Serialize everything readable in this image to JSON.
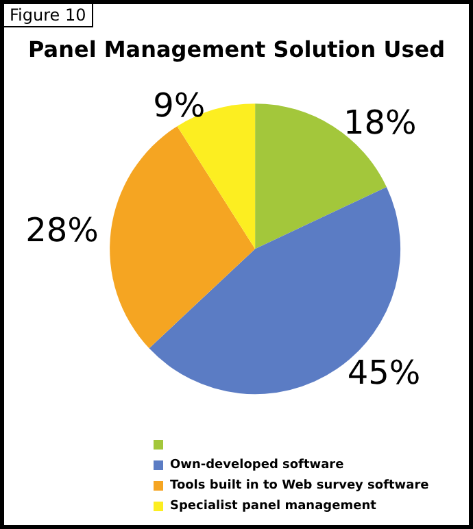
{
  "chart_data": {
    "type": "pie",
    "title": "Panel Management Solution Used",
    "annotations": [
      "Figure 10"
    ],
    "categories": [
      null,
      "Own-developed software",
      "Tools built in to Web survey software",
      "Specialist panel management"
    ],
    "values": [
      18,
      45,
      28,
      9
    ],
    "colors": [
      "#a3c73b",
      "#5b7cc4",
      "#f5a522",
      "#fcee21"
    ],
    "value_labels": [
      "18%",
      "45%",
      "28%",
      "9%"
    ],
    "legend": "bottom"
  }
}
